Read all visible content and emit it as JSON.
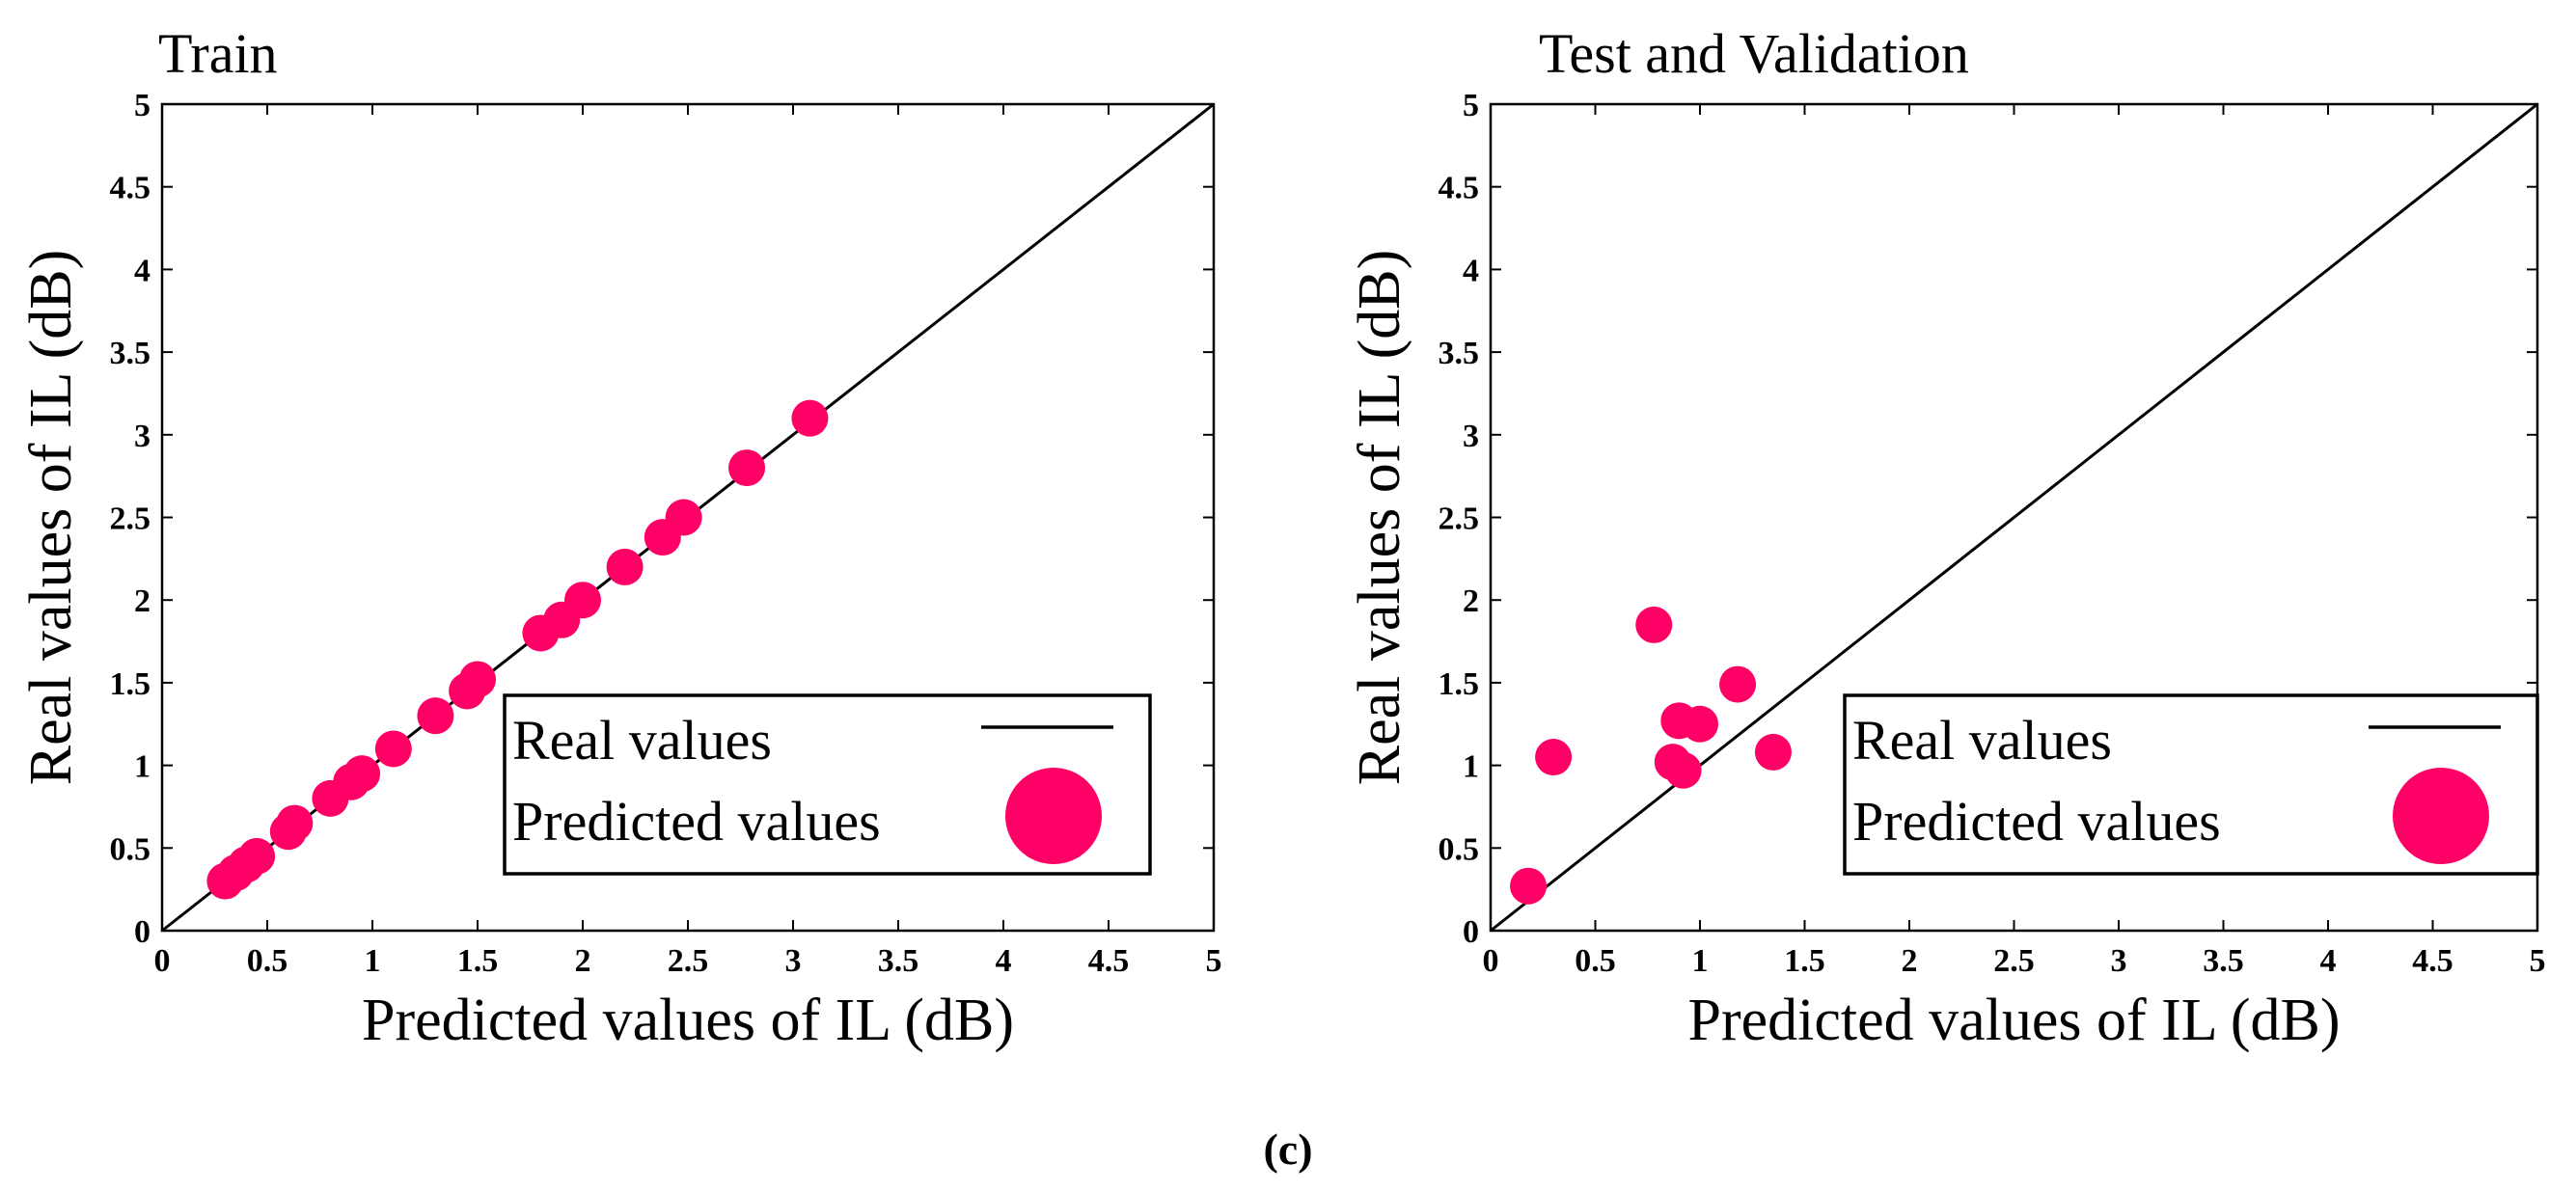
{
  "accent_color": "#FF0066",
  "caption": "(c)",
  "chart_data": [
    {
      "type": "scatter",
      "title": "Train",
      "xlabel": "Predicted values of  IL (dB)",
      "ylabel": "Real values of  IL (dB)",
      "xlim": [
        0,
        5
      ],
      "ylim": [
        0,
        5
      ],
      "xticks": [
        "0",
        "0.5",
        "1",
        "1.5",
        "2",
        "2.5",
        "3",
        "3.5",
        "4",
        "4.5",
        "5"
      ],
      "yticks": [
        "0",
        "0.5",
        "1",
        "1.5",
        "2",
        "2.5",
        "3",
        "3.5",
        "4",
        "4.5",
        "5"
      ],
      "legend_position": "bottom-right",
      "series": [
        {
          "name": "Real values",
          "kind": "line",
          "color": "#000000",
          "x": [
            0,
            5
          ],
          "y": [
            0,
            5
          ]
        },
        {
          "name": "Predicted values",
          "kind": "scatter",
          "color": "#FF0066",
          "x": [
            0.3,
            0.35,
            0.4,
            0.45,
            0.6,
            0.63,
            0.8,
            0.9,
            0.95,
            1.1,
            1.3,
            1.45,
            1.5,
            1.8,
            1.9,
            2.0,
            2.2,
            2.38,
            2.48,
            2.78,
            3.08
          ],
          "y": [
            0.3,
            0.35,
            0.4,
            0.45,
            0.6,
            0.65,
            0.8,
            0.9,
            0.95,
            1.1,
            1.3,
            1.45,
            1.52,
            1.8,
            1.88,
            2.0,
            2.2,
            2.38,
            2.5,
            2.8,
            3.1
          ]
        }
      ]
    },
    {
      "type": "scatter",
      "title": "Test and Validation",
      "xlabel": "Predicted values of  IL (dB)",
      "ylabel": "Real values of  IL (dB)",
      "xlim": [
        0,
        5
      ],
      "ylim": [
        0,
        5
      ],
      "xticks": [
        "0",
        "0.5",
        "1",
        "1.5",
        "2",
        "2.5",
        "3",
        "3.5",
        "4",
        "4.5",
        "5"
      ],
      "yticks": [
        "0",
        "0.5",
        "1",
        "1.5",
        "2",
        "2.5",
        "3",
        "3.5",
        "4",
        "4.5",
        "5"
      ],
      "legend_position": "bottom-right",
      "series": [
        {
          "name": "Real values",
          "kind": "line",
          "color": "#000000",
          "x": [
            0,
            5
          ],
          "y": [
            0,
            5
          ]
        },
        {
          "name": "Predicted values",
          "kind": "scatter",
          "color": "#FF0066",
          "x": [
            0.18,
            0.3,
            0.78,
            0.87,
            0.9,
            0.92,
            1.0,
            1.18,
            1.35
          ],
          "y": [
            0.27,
            1.05,
            1.85,
            1.02,
            1.27,
            0.97,
            1.25,
            1.49,
            1.08
          ]
        }
      ]
    }
  ]
}
